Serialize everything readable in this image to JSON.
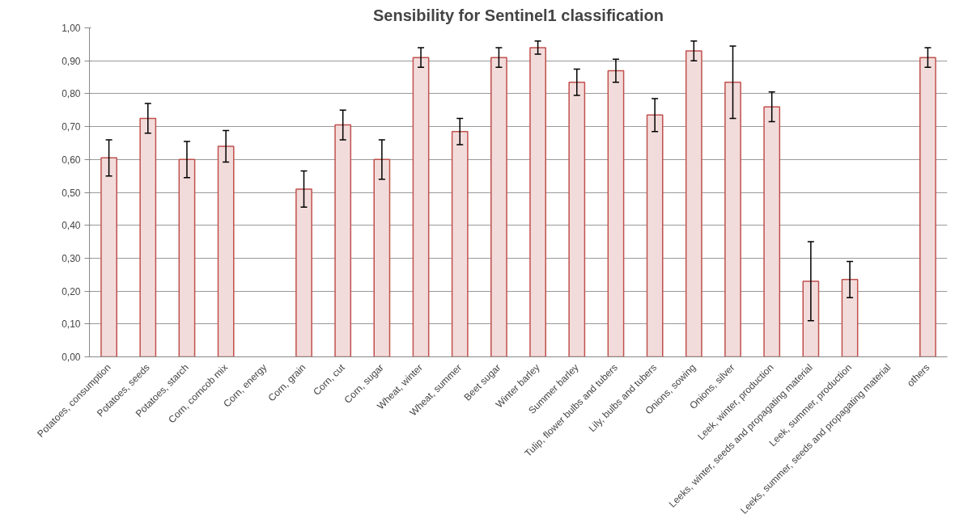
{
  "chart_data": {
    "type": "bar",
    "title": "Sensibility for Sentinel1 classification",
    "categories": [
      "Potatoes, consumption",
      "Potatoes, seeds",
      "Potatoes, starch",
      "Corn, corncob mix",
      "Corn, energy",
      "Corn, grain",
      "Corn, cut",
      "Corn, sugar",
      "Wheat, winter",
      "Wheat, summer",
      "Beet sugar",
      "Winter barley",
      "Summer barley",
      "Tulip, flower bulbs and tubers",
      "Lily, bulbs and tubers",
      "Onions, sowing",
      "Onions, silver",
      "Leek, winter, production",
      "Leeks, winter, seeds and propagating material",
      "Leek, summer, production",
      "Leeks, summer, seeds and propagating material",
      "others"
    ],
    "values": [
      0.605,
      0.725,
      0.6,
      0.64,
      null,
      0.51,
      0.705,
      0.6,
      0.91,
      0.685,
      0.91,
      0.94,
      0.835,
      0.87,
      0.735,
      0.93,
      0.835,
      0.76,
      0.23,
      0.235,
      null,
      0.91
    ],
    "errors": [
      0.055,
      0.045,
      0.055,
      0.048,
      null,
      0.055,
      0.045,
      0.06,
      0.03,
      0.04,
      0.03,
      0.02,
      0.04,
      0.035,
      0.05,
      0.03,
      0.11,
      0.045,
      0.12,
      0.055,
      null,
      0.03
    ],
    "color": "#f2dcdb",
    "ylim": [
      0,
      1
    ],
    "yticks": [
      {
        "value": 0,
        "label": "0,00"
      },
      {
        "value": 0.1,
        "label": "0,10"
      },
      {
        "value": 0.2,
        "label": "0,20"
      },
      {
        "value": 0.3,
        "label": "0,30"
      },
      {
        "value": 0.4,
        "label": "0,40"
      },
      {
        "value": 0.5,
        "label": "0,50"
      },
      {
        "value": 0.6,
        "label": "0,60"
      },
      {
        "value": 0.7,
        "label": "0,70"
      },
      {
        "value": 0.8,
        "label": "0,80"
      },
      {
        "value": 0.9,
        "label": "0,90"
      },
      {
        "value": 1,
        "label": "1,00"
      }
    ],
    "grid": "y"
  }
}
